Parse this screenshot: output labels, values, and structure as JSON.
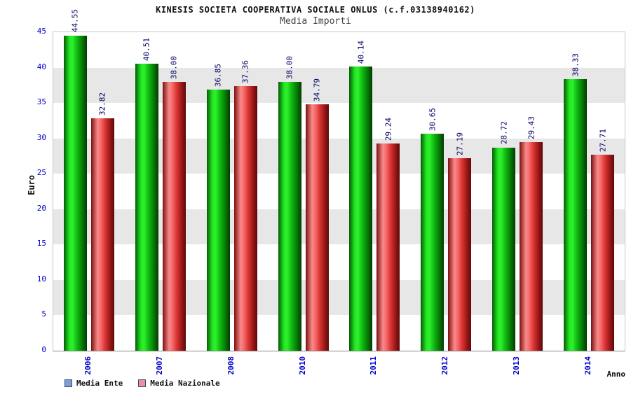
{
  "header": {
    "title": "KINESIS SOCIETA COOPERATIVA SOCIALE ONLUS (c.f.03138940162)",
    "subtitle": "Media Importi"
  },
  "chart_data": {
    "type": "bar",
    "title": "Media Importi",
    "categories": [
      "2006",
      "2007",
      "2008",
      "2010",
      "2011",
      "2012",
      "2013",
      "2014"
    ],
    "series": [
      {
        "name": "Media Ente",
        "values": [
          44.55,
          40.51,
          36.85,
          38.0,
          40.14,
          30.65,
          28.72,
          38.33
        ],
        "bar_color": "#12c012",
        "legend_color": "#7b9fd4"
      },
      {
        "name": "Media Nazionale",
        "values": [
          32.82,
          38.0,
          37.36,
          34.79,
          29.24,
          27.19,
          29.43,
          27.71
        ],
        "bar_color": "#dd3535",
        "legend_color": "#ee8fa0"
      }
    ],
    "xlabel": "Anno",
    "ylabel": "Euro",
    "ylim": [
      0,
      45
    ],
    "ytick_step": 5,
    "value_label_decimals": 2,
    "grid": "alternating-horizontal-bands",
    "legend_position": "bottom-left"
  },
  "colors": {
    "band_light": "#ffffff",
    "band_dark": "#e7e7e7",
    "axis_text": "#0000cc",
    "value_label_text": "#000066",
    "plot_border": "#c8c8c8"
  }
}
